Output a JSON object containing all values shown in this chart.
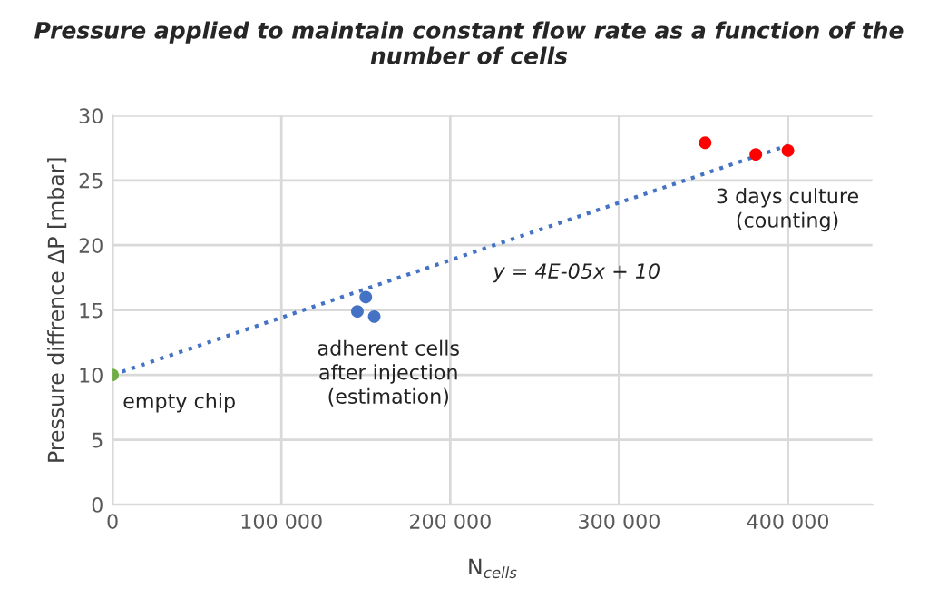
{
  "chart_data": {
    "type": "scatter",
    "title": "Pressure applied to maintain constant flow rate as a function of the number of cells",
    "xlabel": "N$_{cells}$",
    "ylabel": "Pressure diffrence ΔP [mbar]",
    "series": [
      {
        "color": "#70ad47",
        "x": [
          0
        ],
        "values": [
          10
        ]
      },
      {
        "color": "#4472c4",
        "x": [
          145000,
          150000,
          155000
        ],
        "values": [
          14.9,
          16.0,
          14.5
        ]
      },
      {
        "color": "#ff0000",
        "x": [
          351000,
          381000,
          400000
        ],
        "values": [
          27.9,
          27.0,
          27.3
        ]
      },
      {
        "type": "line",
        "marker": "none",
        "color": "#4472c4",
        "line_style": "dotted",
        "x": [
          0,
          400000
        ],
        "values": [
          10,
          27.7
        ]
      }
    ],
    "annotations": [
      "empty chip",
      "adherent cells\nafter injection\n(estimation)",
      "3 days culture\n(counting)",
      "y = 4E-05x + 10"
    ],
    "xlim": [
      0,
      450000
    ],
    "xticks": [
      0,
      {
        "value": 100000,
        "label": "100 000"
      },
      {
        "value": 200000,
        "label": "200 000"
      },
      {
        "value": 300000,
        "label": "300 000"
      },
      {
        "value": 400000,
        "label": "400 000"
      }
    ],
    "ylim": [
      0,
      30
    ],
    "yticks": [
      0,
      5,
      10,
      15,
      20,
      25,
      30
    ],
    "grid": true,
    "marker": "circle"
  }
}
